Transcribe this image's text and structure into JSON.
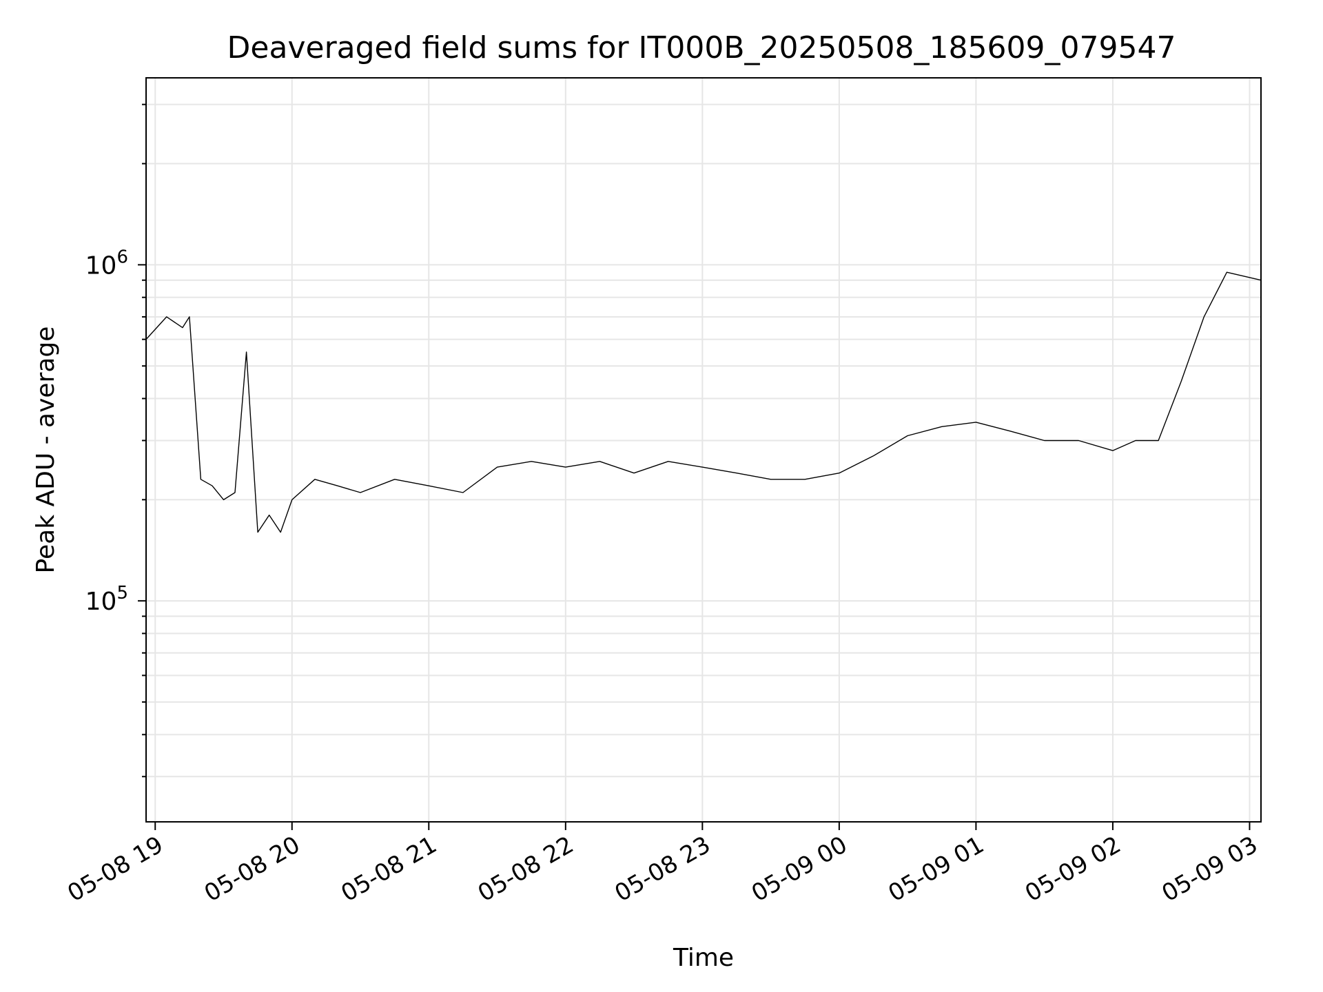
{
  "chart_data": {
    "type": "line",
    "title": "Deaveraged field sums for IT000B_20250508_185609_079547",
    "xlabel": "Time",
    "ylabel": "Peak ADU - average",
    "x_scale": "time",
    "y_scale": "log",
    "xlim": [
      "05-08 18:56",
      "05-09 03:05"
    ],
    "ylim": [
      22000,
      3600000
    ],
    "x_ticks": [
      "05-08 19",
      "05-08 20",
      "05-08 21",
      "05-08 22",
      "05-08 23",
      "05-09 00",
      "05-09 01",
      "05-09 02",
      "05-09 03"
    ],
    "y_ticks": [
      {
        "base": "10",
        "exp": "5",
        "value": 100000
      },
      {
        "base": "10",
        "exp": "6",
        "value": 1000000
      }
    ],
    "grid": true,
    "line_color": "#000000",
    "grid_color": "#e6e6e6",
    "series": [
      {
        "x": [
          "05-08 18:56",
          "05-08 19:05",
          "05-08 19:12",
          "05-08 19:15",
          "05-08 19:20",
          "05-08 19:25",
          "05-08 19:30",
          "05-08 19:35",
          "05-08 19:40",
          "05-08 19:45",
          "05-08 19:50",
          "05-08 19:55",
          "05-08 20:00",
          "05-08 20:10",
          "05-08 20:20",
          "05-08 20:30",
          "05-08 20:45",
          "05-08 21:00",
          "05-08 21:15",
          "05-08 21:30",
          "05-08 21:45",
          "05-08 22:00",
          "05-08 22:15",
          "05-08 22:30",
          "05-08 22:45",
          "05-08 23:00",
          "05-08 23:15",
          "05-08 23:30",
          "05-08 23:45",
          "05-09 00:00",
          "05-09 00:15",
          "05-09 00:30",
          "05-09 00:45",
          "05-09 01:00",
          "05-09 01:15",
          "05-09 01:30",
          "05-09 01:45",
          "05-09 02:00",
          "05-09 02:10",
          "05-09 02:20",
          "05-09 02:30",
          "05-09 02:40",
          "05-09 02:50",
          "05-09 03:05"
        ],
        "values": [
          600000,
          700000,
          650000,
          700000,
          230000,
          220000,
          200000,
          210000,
          550000,
          160000,
          180000,
          160000,
          200000,
          230000,
          220000,
          210000,
          230000,
          220000,
          210000,
          250000,
          260000,
          250000,
          260000,
          240000,
          260000,
          250000,
          240000,
          230000,
          230000,
          240000,
          270000,
          310000,
          330000,
          340000,
          320000,
          300000,
          300000,
          280000,
          300000,
          300000,
          450000,
          700000,
          950000,
          900000
        ]
      }
    ]
  }
}
